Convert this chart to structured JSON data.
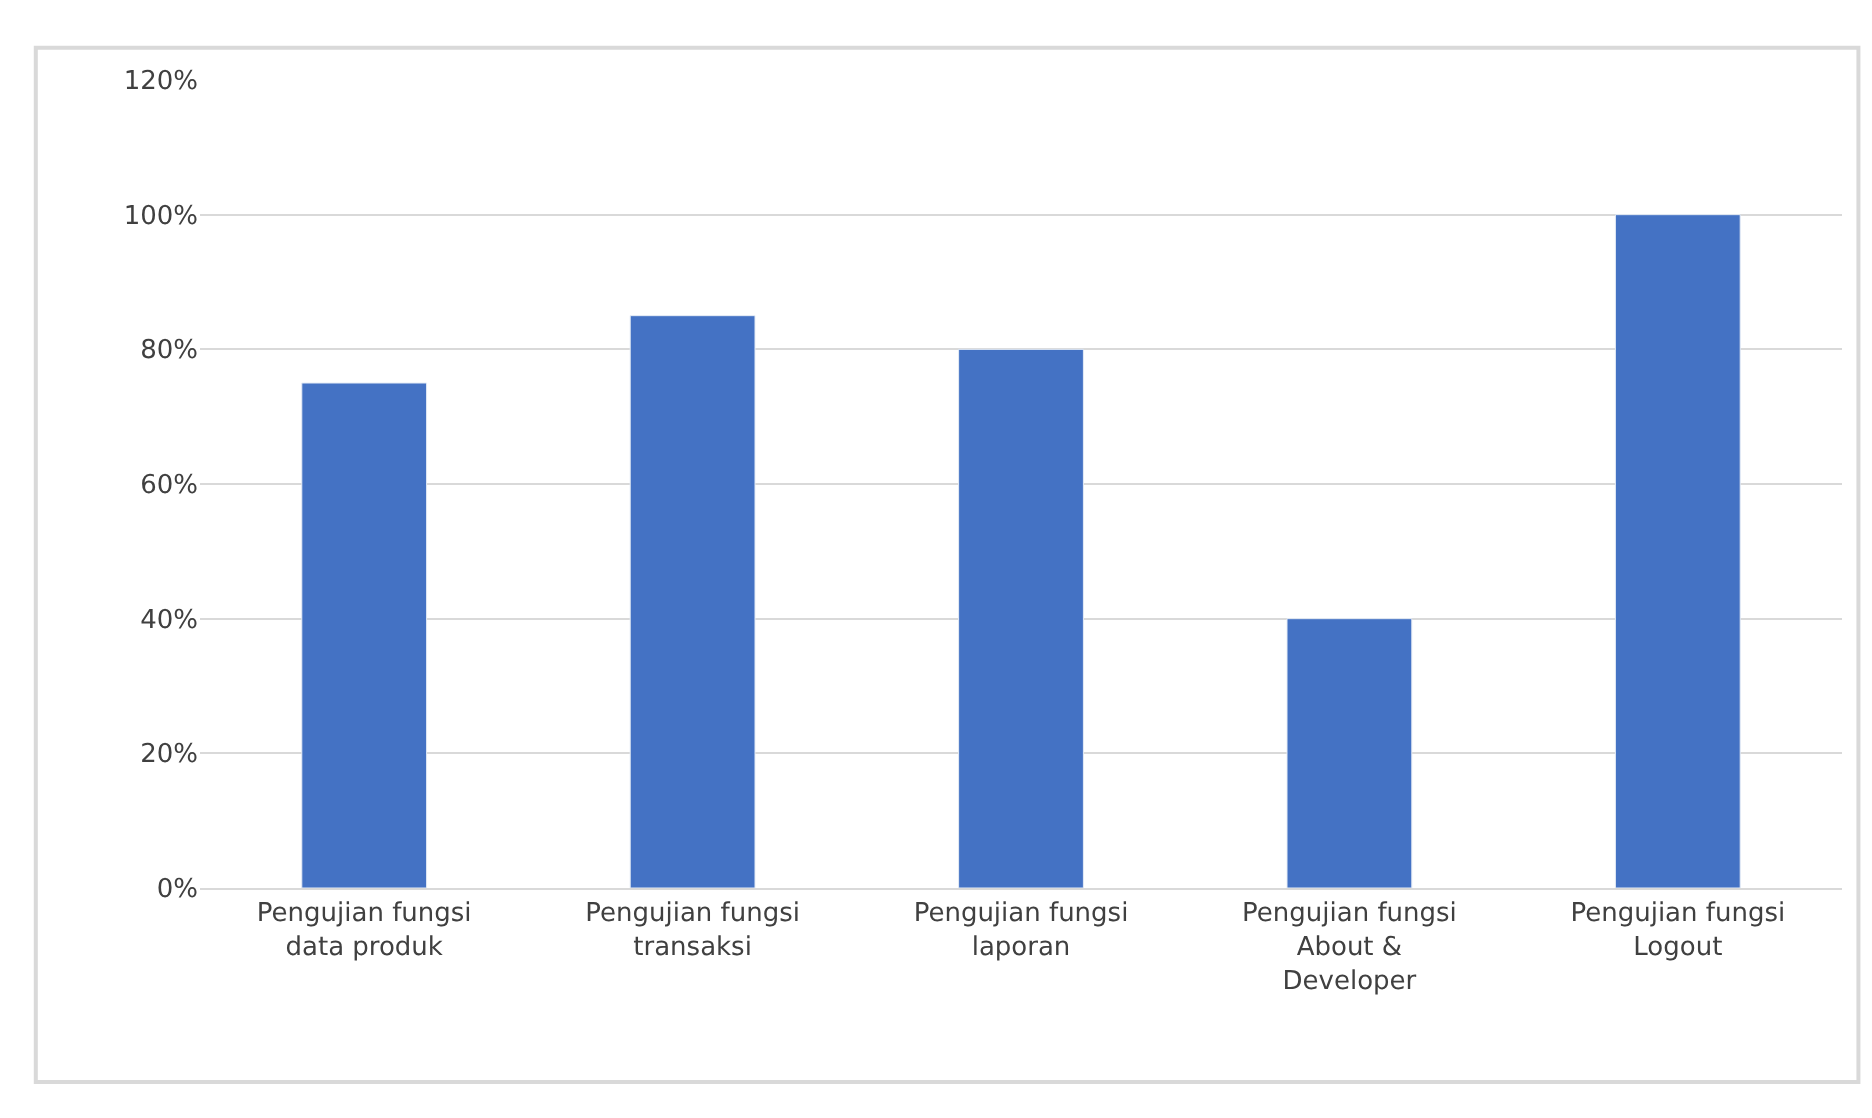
{
  "chart_data": {
    "type": "bar",
    "categories": [
      "Pengujian fungsi data produk",
      "Pengujian fungsi transaksi",
      "Pengujian fungsi laporan",
      "Pengujian fungsi About & Developer",
      "Pengujian fungsi Logout"
    ],
    "values": [
      75,
      85,
      80,
      40,
      100
    ],
    "color": "#4472c4",
    "ylim": [
      0,
      120
    ],
    "yticks": [
      {
        "value": 0,
        "label": "0%"
      },
      {
        "value": 20,
        "label": "20%"
      },
      {
        "value": 40,
        "label": "40%"
      },
      {
        "value": 60,
        "label": "60%"
      },
      {
        "value": 80,
        "label": "80%"
      },
      {
        "value": 100,
        "label": "100%"
      },
      {
        "value": 120,
        "label": "120%"
      }
    ],
    "grid": "y"
  }
}
